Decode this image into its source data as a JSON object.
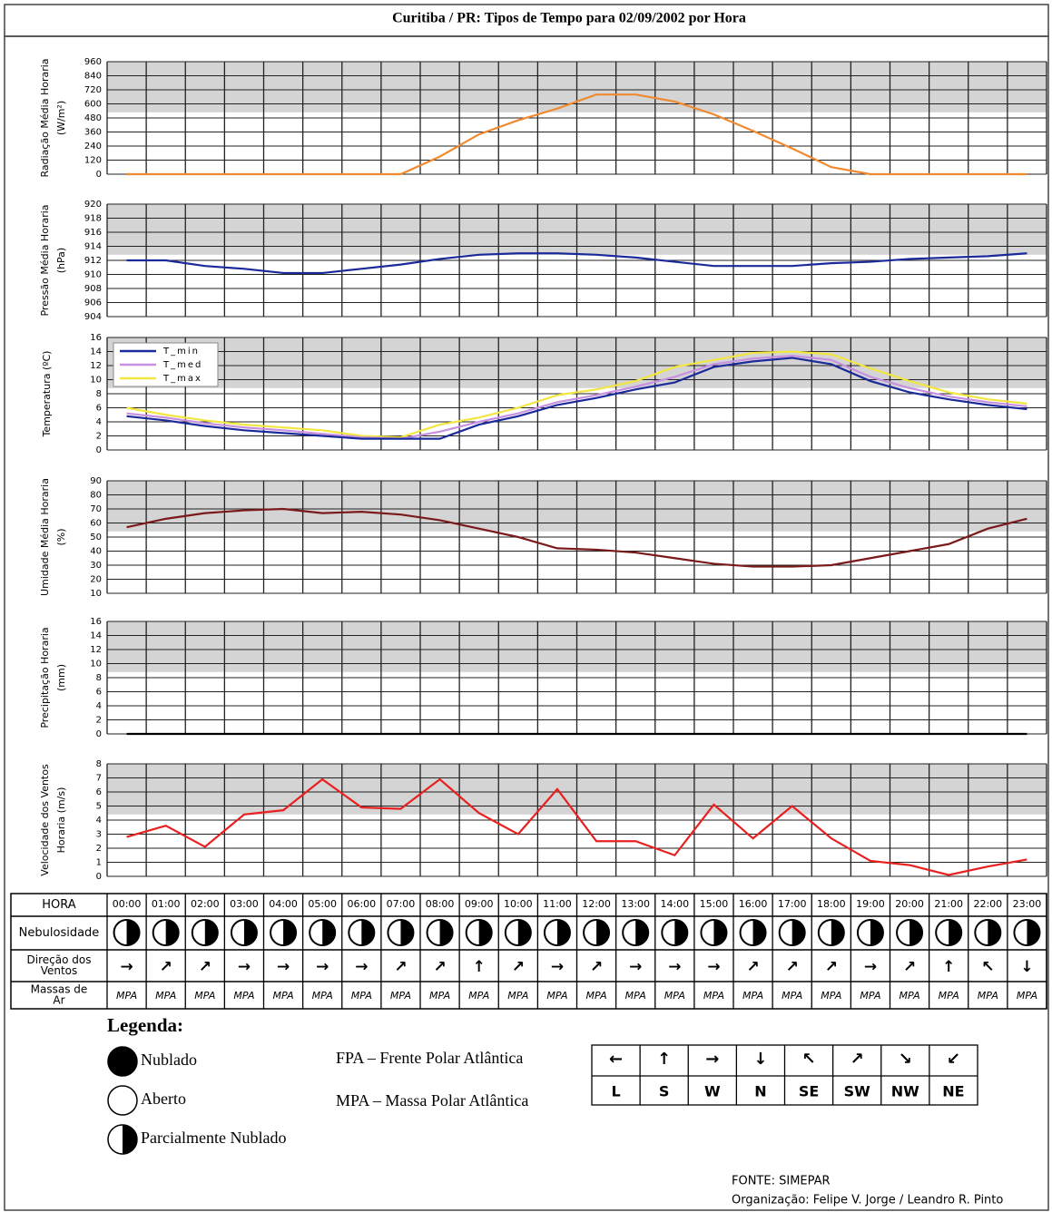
{
  "title": "Curitiba / PR: Tipos de Tempo para 02/09/2002 por Hora",
  "chart_data": [
    {
      "type": "line",
      "ylabel": [
        "Radiação Média Horaria",
        "(W/m²)"
      ],
      "ylim": [
        0,
        960
      ],
      "yticks": [
        0,
        120,
        240,
        360,
        480,
        600,
        720,
        840,
        960
      ],
      "grid": true,
      "series": [
        {
          "color": "#f08a30",
          "values": [
            0,
            0,
            0,
            0,
            0,
            0,
            0,
            0,
            150,
            340,
            460,
            560,
            680,
            680,
            620,
            510,
            370,
            220,
            60,
            0,
            0,
            0,
            0,
            0
          ]
        }
      ]
    },
    {
      "type": "line",
      "ylabel": [
        "Pressão Média Horaria",
        "(hPa)"
      ],
      "ylim": [
        904,
        920
      ],
      "yticks": [
        904,
        906,
        908,
        910,
        912,
        914,
        916,
        918,
        920
      ],
      "grid": true,
      "series": [
        {
          "color": "#1a2a9a",
          "values": [
            912,
            912,
            911.2,
            910.8,
            910.2,
            910.2,
            910.8,
            911.4,
            912.2,
            912.8,
            913,
            913,
            912.8,
            912.4,
            911.8,
            911.2,
            911.2,
            911.2,
            911.6,
            911.8,
            912.2,
            912.4,
            912.6,
            913
          ]
        }
      ]
    },
    {
      "type": "line",
      "ylabel": [
        "Temperatura (ºC)"
      ],
      "ylim": [
        0,
        16
      ],
      "yticks": [
        0,
        2,
        4,
        6,
        8,
        10,
        12,
        14,
        16
      ],
      "grid": true,
      "legend": "top-left",
      "series": [
        {
          "name": "T_max",
          "color": "#f2e640",
          "values": [
            6,
            5,
            4.2,
            3.6,
            3.2,
            2.8,
            2,
            1.8,
            3.6,
            4.6,
            6,
            7.8,
            8.6,
            9.8,
            11.8,
            12.8,
            13.8,
            14,
            13.6,
            11.6,
            9.8,
            8.2,
            7.2,
            6.6
          ]
        },
        {
          "name": "T_med",
          "color": "#c890e0",
          "values": [
            5.2,
            4.6,
            3.8,
            3.2,
            2.8,
            2.3,
            1.8,
            1.6,
            2.6,
            4,
            5.2,
            6.8,
            7.8,
            9,
            10.4,
            12.2,
            13,
            13.4,
            12.8,
            10.4,
            8.8,
            7.6,
            6.8,
            6.2
          ]
        },
        {
          "name": "T_min",
          "color": "#1a2a9a",
          "values": [
            4.8,
            4.2,
            3.4,
            2.8,
            2.4,
            2,
            1.6,
            1.6,
            1.6,
            3.6,
            4.8,
            6.4,
            7.4,
            8.6,
            9.6,
            11.8,
            12.6,
            13.1,
            12.2,
            9.8,
            8.2,
            7.2,
            6.4,
            5.8
          ]
        }
      ]
    },
    {
      "type": "line",
      "ylabel": [
        "Umidade Média Horaria",
        "(%)"
      ],
      "ylim": [
        10,
        90
      ],
      "yticks": [
        10,
        20,
        30,
        40,
        50,
        60,
        70,
        80,
        90
      ],
      "grid": true,
      "series": [
        {
          "color": "#7a1a1a",
          "values": [
            57,
            63,
            67,
            69,
            70,
            67,
            68,
            66,
            62,
            56,
            50,
            42,
            41,
            39,
            35,
            31,
            29,
            29,
            30,
            35,
            40,
            45,
            56,
            63
          ]
        }
      ]
    },
    {
      "type": "line",
      "ylabel": [
        "Precipitação Horaria",
        "(mm)"
      ],
      "ylim": [
        0,
        16
      ],
      "yticks": [
        0,
        2,
        4,
        6,
        8,
        10,
        12,
        14,
        16
      ],
      "grid": true,
      "series": [
        {
          "color": "#000000",
          "values": [
            0,
            0,
            0,
            0,
            0,
            0,
            0,
            0,
            0,
            0,
            0,
            0,
            0,
            0,
            0,
            0,
            0,
            0,
            0,
            0,
            0,
            0,
            0,
            0
          ]
        }
      ]
    },
    {
      "type": "line",
      "ylabel": [
        "Velocidade dos Ventos",
        "Horaria (m/s)"
      ],
      "ylim": [
        0,
        8
      ],
      "yticks": [
        0,
        1,
        2,
        3,
        4,
        5,
        6,
        7,
        8
      ],
      "grid": true,
      "series": [
        {
          "color": "#e82020",
          "values": [
            2.8,
            3.6,
            2.1,
            4.4,
            4.7,
            6.9,
            4.9,
            4.8,
            6.9,
            4.5,
            3.0,
            6.2,
            2.5,
            2.5,
            1.5,
            5.1,
            2.7,
            5.0,
            2.7,
            1.1,
            0.8,
            0.1,
            0.7,
            1.2
          ]
        }
      ]
    }
  ],
  "table": {
    "row_labels": [
      [
        "HORA"
      ],
      [
        "Nebulosidade"
      ],
      [
        "Direção dos",
        "Ventos"
      ],
      [
        "Massas de",
        "Ar"
      ]
    ],
    "hours": [
      "00:00",
      "01:00",
      "02:00",
      "03:00",
      "04:00",
      "05:00",
      "06:00",
      "07:00",
      "08:00",
      "09:00",
      "10:00",
      "11:00",
      "12:00",
      "13:00",
      "14:00",
      "15:00",
      "16:00",
      "17:00",
      "18:00",
      "19:00",
      "20:00",
      "21:00",
      "22:00",
      "23:00"
    ],
    "wind": [
      "→",
      "↗",
      "↗",
      "→",
      "→",
      "→",
      "→",
      "↗",
      "↗",
      "↑",
      "↗",
      "→",
      "↗",
      "→",
      "→",
      "→",
      "↗",
      "↗",
      "↗",
      "→",
      "↗",
      "↑",
      "↖",
      "↓"
    ],
    "air_mass": [
      "MPA",
      "MPA",
      "MPA",
      "MPA",
      "MPA",
      "MPA",
      "MPA",
      "MPA",
      "MPA",
      "MPA",
      "MPA",
      "MPA",
      "MPA",
      "MPA",
      "MPA",
      "MPA",
      "MPA",
      "MPA",
      "MPA",
      "MPA",
      "MPA",
      "MPA",
      "MPA",
      "MPA"
    ]
  },
  "legend": {
    "title": "Legenda:",
    "cloud": [
      "Nublado",
      "Aberto",
      "Parcialmente Nublado"
    ],
    "masses": [
      "FPA – Frente Polar Atlântica",
      "MPA – Massa Polar Atlântica"
    ],
    "arrows": [
      "←",
      "↑",
      "→",
      "↓",
      "↖",
      "↗",
      "↘",
      "↙"
    ],
    "directions": [
      "L",
      "S",
      "W",
      "N",
      "SE",
      "SW",
      "NW",
      "NE"
    ]
  },
  "source": [
    "FONTE: SIMEPAR",
    "Organização: Felipe V. Jorge / Leandro R. Pinto"
  ]
}
